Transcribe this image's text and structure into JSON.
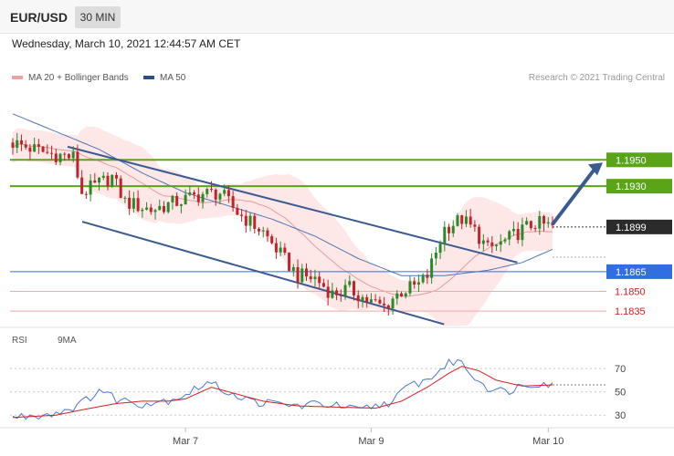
{
  "header": {
    "symbol": "EUR/USD",
    "timeframe": "30 MIN",
    "datetime": "Wednesday, March 10, 2021 12:44:57 AM CET"
  },
  "legend": {
    "ma20_label": "MA 20 + Bollinger Bands",
    "ma50_label": "MA 50",
    "credit": "Research © 2021 Trading Central"
  },
  "rsi_legend": {
    "rsi_label": "RSI",
    "ma_label": "9MA"
  },
  "colors": {
    "bullish": "#2a8a2a",
    "bearish": "#c0242b",
    "target_green": "#5aa517",
    "support_blue": "#2f6fe0",
    "channel": "#3a5a92",
    "bb_fill": "#fde4e4",
    "ma20": "#e79a9a",
    "ma50": "#4f77b5",
    "rsi": "#4a78d6",
    "rsi_ma": "#d11f1f"
  },
  "chart_data": [
    {
      "type": "candlestick",
      "title": "EUR/USD",
      "ylim": [
        1.1824,
        1.2005
      ],
      "y_tick_labels": [
        "1.1950",
        "1.1930",
        "1.1899",
        "1.1865",
        "1.1850",
        "1.1835"
      ],
      "levels": [
        {
          "value": 1.195,
          "label": "1.1950",
          "kind": "target",
          "color": "#5aa517"
        },
        {
          "value": 1.193,
          "label": "1.1930",
          "kind": "target",
          "color": "#5aa517"
        },
        {
          "value": 1.1899,
          "label": "1.1899",
          "kind": "last",
          "color": "#2b2b2b"
        },
        {
          "value": 1.1865,
          "label": "1.1865",
          "kind": "pivot",
          "color": "#2f6fe0"
        },
        {
          "value": 1.185,
          "label": "1.1850",
          "kind": "support",
          "color": "#d11f1f"
        },
        {
          "value": 1.1835,
          "label": "1.1835",
          "kind": "support",
          "color": "#d11f1f"
        }
      ],
      "channel": {
        "upper": [
          [
            0,
            1.196
          ],
          [
            120,
            1.1872
          ]
        ],
        "lower": [
          [
            0,
            1.1903
          ],
          [
            102,
            1.1825
          ]
        ]
      },
      "forecast_arrow": {
        "from": [
          125,
          1.1901
        ],
        "to": [
          137,
          1.1948
        ]
      },
      "x_ticks": [
        {
          "index": 40,
          "label": "Mar 7"
        },
        {
          "index": 83,
          "label": "Mar 9"
        },
        {
          "index": 124,
          "label": "Mar 10"
        }
      ],
      "price_anchors": [
        [
          0,
          1.1963
        ],
        [
          8,
          1.1955
        ],
        [
          14,
          1.1952
        ],
        [
          16,
          1.1925
        ],
        [
          20,
          1.1932
        ],
        [
          23,
          1.1937
        ],
        [
          26,
          1.1918
        ],
        [
          32,
          1.1912
        ],
        [
          40,
          1.192
        ],
        [
          44,
          1.1924
        ],
        [
          48,
          1.1925
        ],
        [
          52,
          1.191
        ],
        [
          58,
          1.1895
        ],
        [
          62,
          1.1878
        ],
        [
          66,
          1.1862
        ],
        [
          70,
          1.186
        ],
        [
          74,
          1.1848
        ],
        [
          78,
          1.1852
        ],
        [
          82,
          1.1843
        ],
        [
          86,
          1.1838
        ],
        [
          88,
          1.1845
        ],
        [
          90,
          1.185
        ],
        [
          94,
          1.1855
        ],
        [
          96,
          1.1862
        ],
        [
          98,
          1.188
        ],
        [
          100,
          1.1898
        ],
        [
          104,
          1.1905
        ],
        [
          107,
          1.1896
        ],
        [
          110,
          1.1882
        ],
        [
          114,
          1.1888
        ],
        [
          118,
          1.1897
        ],
        [
          121,
          1.1902
        ],
        [
          125,
          1.1899
        ]
      ],
      "ma50_anchors": [
        [
          0,
          1.1985
        ],
        [
          20,
          1.1958
        ],
        [
          30,
          1.194
        ],
        [
          40,
          1.1925
        ],
        [
          50,
          1.1915
        ],
        [
          60,
          1.1905
        ],
        [
          70,
          1.1892
        ],
        [
          80,
          1.1875
        ],
        [
          90,
          1.1862
        ],
        [
          100,
          1.1862
        ],
        [
          110,
          1.1866
        ],
        [
          118,
          1.1872
        ],
        [
          125,
          1.1882
        ]
      ]
    },
    {
      "type": "line",
      "title": "RSI",
      "ylim": [
        20,
        85
      ],
      "y_ticks": [
        30,
        50,
        70
      ],
      "series": [
        {
          "name": "RSI",
          "anchors": [
            [
              0,
              28
            ],
            [
              10,
              32
            ],
            [
              16,
              40
            ],
            [
              20,
              52
            ],
            [
              24,
              44
            ],
            [
              30,
              40
            ],
            [
              36,
              43
            ],
            [
              40,
              48
            ],
            [
              45,
              58
            ],
            [
              50,
              50
            ],
            [
              55,
              42
            ],
            [
              60,
              40
            ],
            [
              66,
              38
            ],
            [
              72,
              40
            ],
            [
              80,
              34
            ],
            [
              84,
              38
            ],
            [
              88,
              42
            ],
            [
              92,
              56
            ],
            [
              96,
              60
            ],
            [
              100,
              72
            ],
            [
              103,
              78
            ],
            [
              106,
              66
            ],
            [
              110,
              54
            ],
            [
              114,
              50
            ],
            [
              118,
              56
            ],
            [
              122,
              58
            ],
            [
              125,
              56
            ]
          ]
        },
        {
          "name": "9MA",
          "anchors": [
            [
              0,
              28
            ],
            [
              10,
              30
            ],
            [
              18,
              36
            ],
            [
              24,
              40
            ],
            [
              30,
              42
            ],
            [
              36,
              42
            ],
            [
              40,
              44
            ],
            [
              46,
              54
            ],
            [
              52,
              48
            ],
            [
              58,
              42
            ],
            [
              66,
              38
            ],
            [
              74,
              37
            ],
            [
              84,
              36
            ],
            [
              90,
              42
            ],
            [
              96,
              54
            ],
            [
              101,
              66
            ],
            [
              104,
              72
            ],
            [
              108,
              68
            ],
            [
              112,
              60
            ],
            [
              118,
              55
            ],
            [
              125,
              56
            ]
          ]
        }
      ]
    }
  ]
}
